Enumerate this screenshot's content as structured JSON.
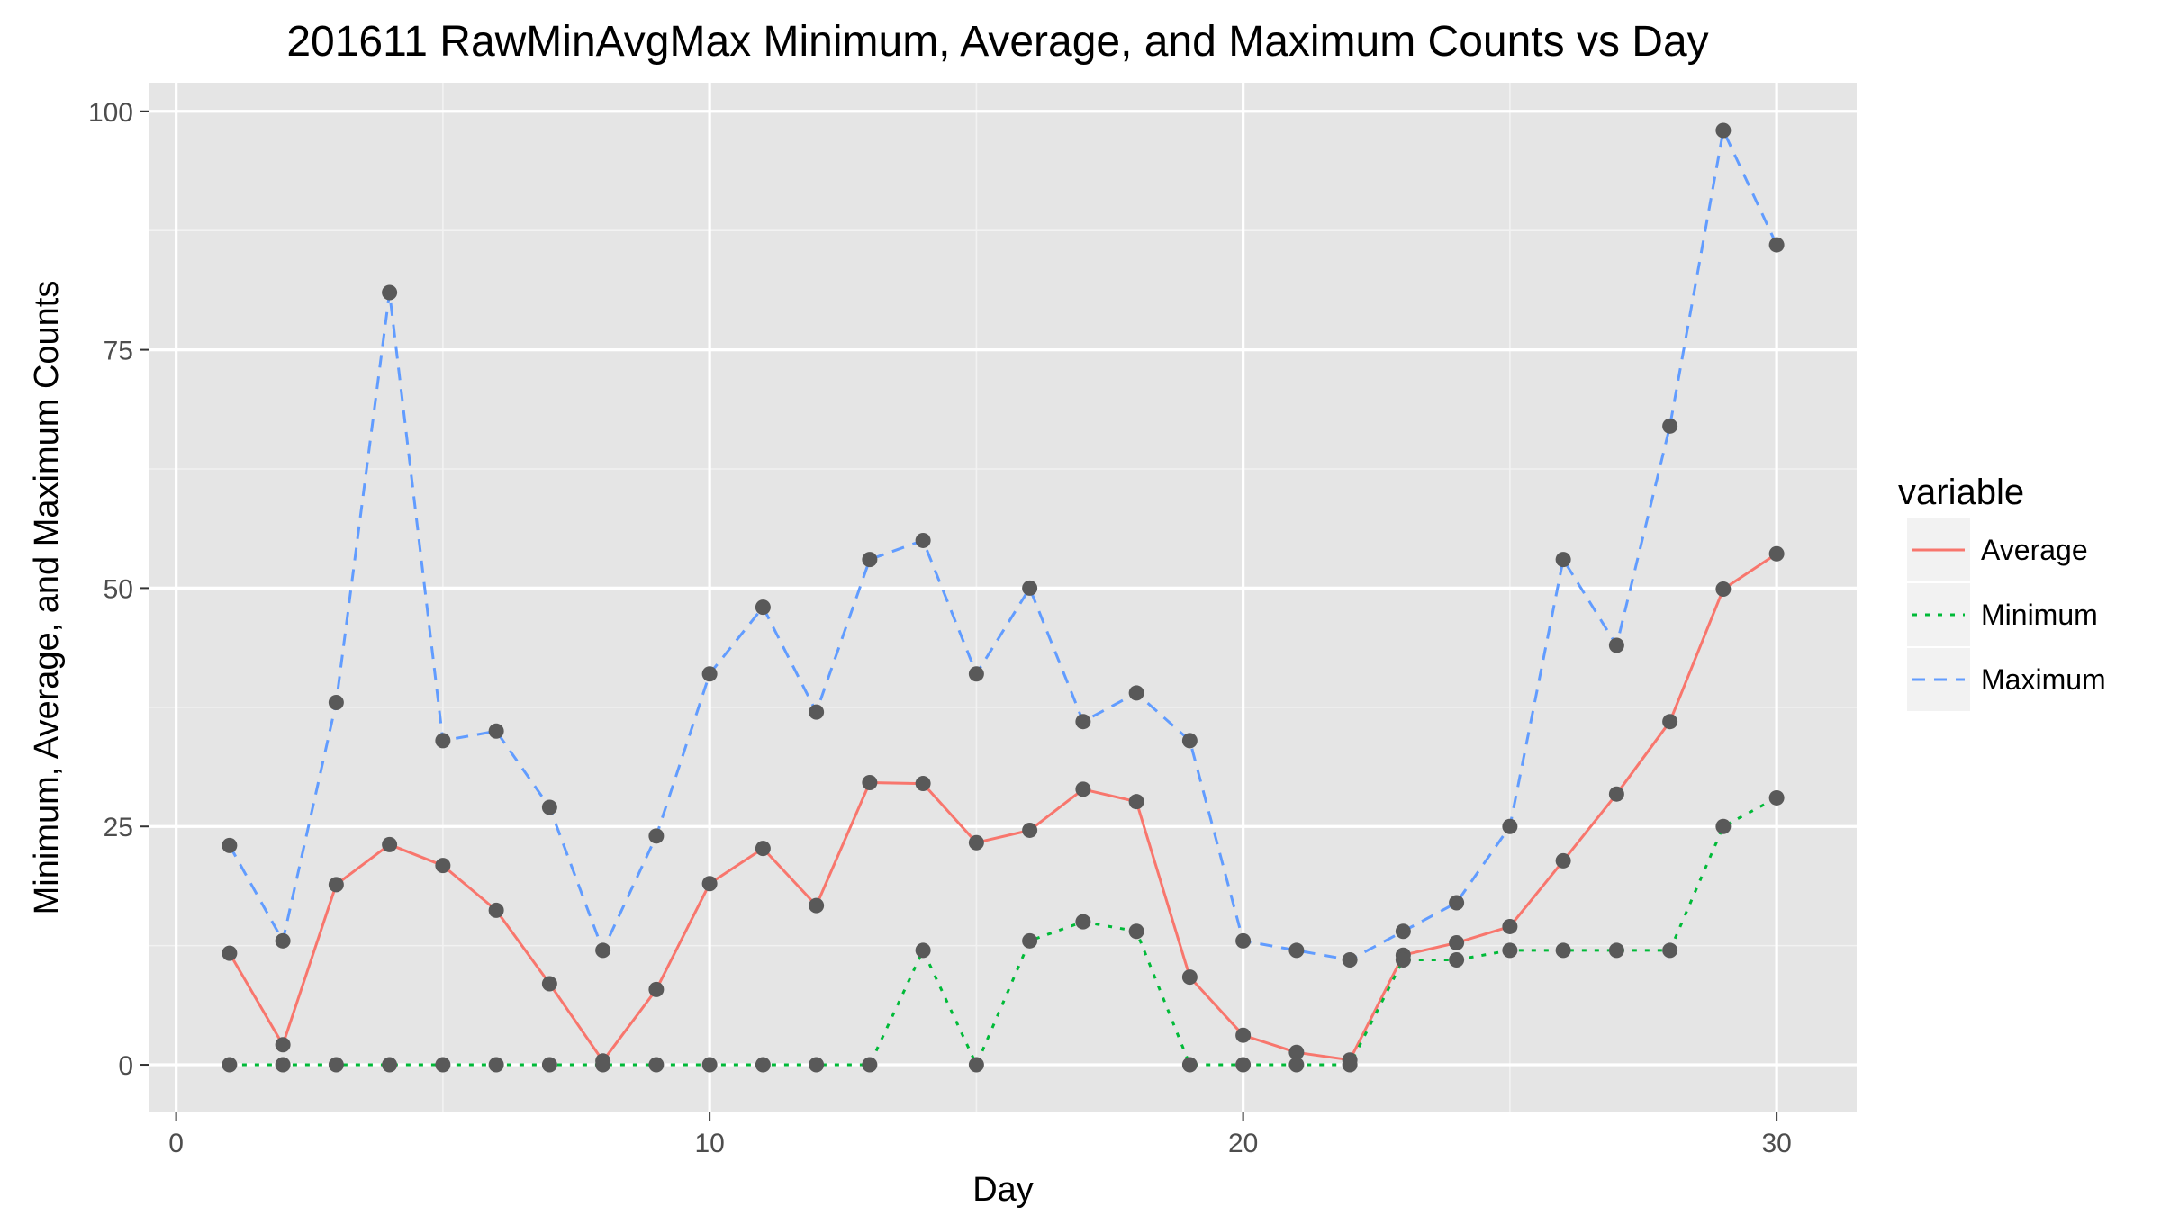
{
  "chart_data": {
    "type": "line",
    "title": "201611 RawMinAvgMax Minimum, Average, and Maximum Counts vs Day",
    "xlabel": "Day",
    "ylabel": "Minimum, Average, and Maximum Counts",
    "xlim": [
      -0.5,
      31.5
    ],
    "ylim": [
      -5,
      103
    ],
    "x_ticks": [
      0,
      10,
      20,
      30
    ],
    "y_ticks": [
      0,
      25,
      50,
      75,
      100
    ],
    "grid": true,
    "legend_position": "right",
    "legend_title": "variable",
    "x": [
      1,
      2,
      3,
      4,
      5,
      6,
      7,
      8,
      9,
      10,
      11,
      12,
      13,
      14,
      15,
      16,
      17,
      18,
      19,
      20,
      21,
      22,
      23,
      24,
      25,
      26,
      27,
      28,
      29,
      30
    ],
    "series": [
      {
        "name": "Average",
        "color": "#f8766d",
        "dash": "solid",
        "values": [
          11.7,
          2.1,
          18.9,
          23.1,
          20.9,
          16.2,
          8.5,
          0.4,
          7.9,
          19.0,
          22.7,
          16.7,
          29.6,
          29.5,
          23.3,
          24.6,
          28.9,
          27.6,
          9.2,
          3.1,
          1.3,
          0.5,
          11.5,
          12.8,
          14.5,
          21.4,
          28.4,
          36.0,
          49.9,
          53.6
        ]
      },
      {
        "name": "Minimum",
        "color": "#00ba38",
        "dash": "dotted",
        "values": [
          0,
          0,
          0,
          0,
          0,
          0,
          0,
          0,
          0,
          0,
          0,
          0,
          0,
          12,
          0,
          13,
          15,
          14,
          0,
          0,
          0,
          0,
          11,
          11,
          12,
          12,
          12,
          12,
          25,
          28
        ]
      },
      {
        "name": "Maximum",
        "color": "#619cff",
        "dash": "dashed",
        "values": [
          23,
          13,
          38,
          81,
          34,
          35,
          27,
          12,
          24,
          41,
          48,
          37,
          53,
          55,
          41,
          50,
          36,
          39,
          34,
          13,
          12,
          11,
          14,
          17,
          25,
          53,
          44,
          67,
          98,
          86
        ]
      }
    ],
    "point_color": "#595959"
  }
}
